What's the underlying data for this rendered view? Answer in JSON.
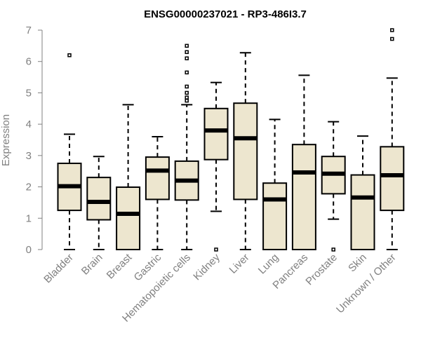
{
  "chart_data": {
    "type": "boxplot",
    "title": "ENSG00000237021 - RP3-486I3.7",
    "xlabel": "",
    "ylabel": "Expression",
    "ylim": [
      0,
      7
    ],
    "yticks": [
      0,
      1,
      2,
      3,
      4,
      5,
      6,
      7
    ],
    "grid": false,
    "box_fill": "#ede6cf",
    "box_stroke": "#000000",
    "axis_color": "#808080",
    "categories": [
      "Bladder",
      "Brain",
      "Breast",
      "Gastric",
      "Hematopoietic cells",
      "Kidney",
      "Liver",
      "Lung",
      "Pancreas",
      "Prostate",
      "Skin",
      "Unknown / Other"
    ],
    "boxes": [
      {
        "category": "Bladder",
        "whisker_low": 0,
        "q1": 1.25,
        "median": 2.02,
        "q3": 2.75,
        "whisker_high": 3.68,
        "outliers": [
          6.2
        ]
      },
      {
        "category": "Brain",
        "whisker_low": 0,
        "q1": 0.95,
        "median": 1.52,
        "q3": 2.3,
        "whisker_high": 2.97,
        "outliers": []
      },
      {
        "category": "Breast",
        "whisker_low": 0,
        "q1": 0,
        "median": 1.14,
        "q3": 1.99,
        "whisker_high": 4.62,
        "outliers": []
      },
      {
        "category": "Gastric",
        "whisker_low": 0,
        "q1": 1.6,
        "median": 2.52,
        "q3": 2.95,
        "whisker_high": 3.6,
        "outliers": []
      },
      {
        "category": "Hematopoietic cells",
        "whisker_low": 0,
        "q1": 1.58,
        "median": 2.2,
        "q3": 2.82,
        "whisker_high": 4.62,
        "outliers": [
          4.75,
          4.85,
          5.0,
          5.2,
          5.65,
          6.1,
          6.3,
          6.5
        ]
      },
      {
        "category": "Kidney",
        "whisker_low": 1.22,
        "q1": 2.87,
        "median": 3.8,
        "q3": 4.5,
        "whisker_high": 5.33,
        "outliers": [
          0
        ]
      },
      {
        "category": "Liver",
        "whisker_low": 0,
        "q1": 1.6,
        "median": 3.55,
        "q3": 4.67,
        "whisker_high": 6.28,
        "outliers": []
      },
      {
        "category": "Lung",
        "whisker_low": 0,
        "q1": 0,
        "median": 1.6,
        "q3": 2.12,
        "whisker_high": 4.15,
        "outliers": []
      },
      {
        "category": "Pancreas",
        "whisker_low": 0,
        "q1": 0,
        "median": 2.46,
        "q3": 3.35,
        "whisker_high": 5.56,
        "outliers": []
      },
      {
        "category": "Prostate",
        "whisker_low": 0.97,
        "q1": 1.78,
        "median": 2.42,
        "q3": 2.97,
        "whisker_high": 4.08,
        "outliers": [
          0
        ]
      },
      {
        "category": "Skin",
        "whisker_low": 0,
        "q1": 0,
        "median": 1.66,
        "q3": 2.38,
        "whisker_high": 3.62,
        "outliers": []
      },
      {
        "category": "Unknown / Other",
        "whisker_low": 0,
        "q1": 1.25,
        "median": 2.37,
        "q3": 3.28,
        "whisker_high": 5.47,
        "outliers": [
          6.72,
          7.0
        ]
      }
    ]
  }
}
